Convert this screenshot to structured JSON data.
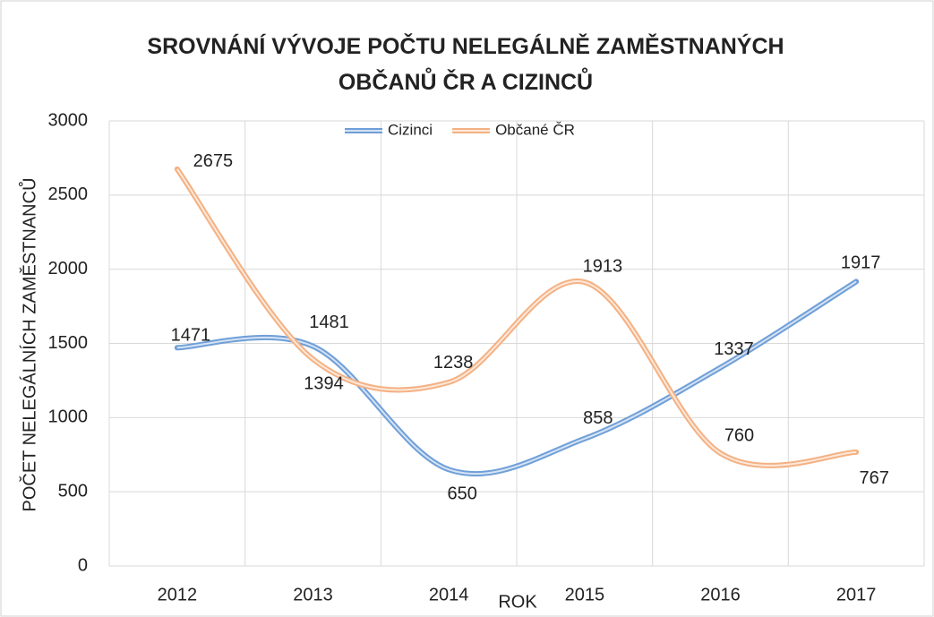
{
  "chart_data": {
    "type": "line",
    "title": "SROVNÁNÍ VÝVOJE POČTU NELEGÁLNĚ ZAMĚSTNANÝCH OBČANŮ ČR A CIZINCŮ",
    "x_label": "ROK",
    "y_label": "POČET NELEGÁLNÍCH ZAMĚSTNANCŮ",
    "categories": [
      "2012",
      "2013",
      "2014",
      "2015",
      "2016",
      "2017"
    ],
    "series": [
      {
        "name": "Cizinci",
        "color": "#6f9fd8",
        "values": [
          1471,
          1481,
          650,
          858,
          1337,
          1917
        ]
      },
      {
        "name": "Občané ČR",
        "color": "#f4b183",
        "values": [
          2675,
          1394,
          1238,
          1913,
          760,
          767
        ]
      }
    ],
    "ylim": [
      0,
      3000
    ],
    "yticks": [
      0,
      500,
      1000,
      1500,
      2000,
      2500,
      3000
    ],
    "grid": true,
    "smooth": true,
    "legend": "top"
  }
}
